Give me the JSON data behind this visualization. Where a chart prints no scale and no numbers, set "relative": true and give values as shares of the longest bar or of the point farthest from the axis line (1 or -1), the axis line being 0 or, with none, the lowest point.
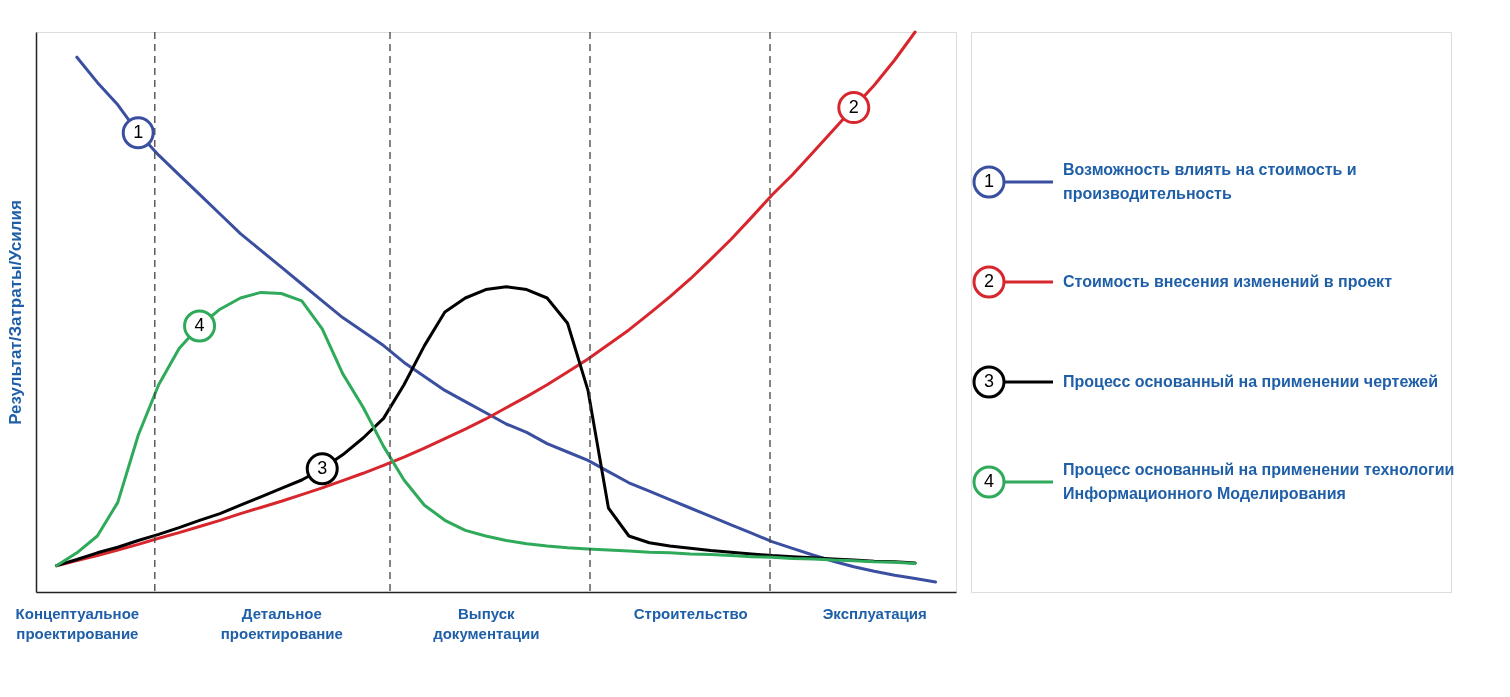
{
  "chart_data": {
    "type": "line",
    "relative": true,
    "ylabel": "Результат/Затраты/Усилия",
    "legend": "right",
    "marker": "none",
    "line_style": "solid",
    "categories": [
      null,
      "Концептуальное\nпроектирование",
      null,
      null,
      null,
      null,
      null,
      null,
      null,
      null,
      null,
      "Детальное\nпроектирование",
      null,
      null,
      null,
      null,
      null,
      null,
      null,
      null,
      null,
      "Выпуск\nдокументации",
      null,
      null,
      null,
      null,
      null,
      null,
      null,
      null,
      null,
      "Строительство",
      null,
      null,
      null,
      null,
      null,
      null,
      null,
      null,
      "Эксплуатация",
      null,
      null,
      null
    ],
    "series": [
      {
        "name": "Возможность влиять на стоимость и производительность",
        "color": "#3b4fa0",
        "values": [
          null,
          0.955,
          0.91,
          0.87,
          0.82,
          0.78,
          0.745,
          0.71,
          0.675,
          0.64,
          0.61,
          0.58,
          0.55,
          0.52,
          0.49,
          0.465,
          0.44,
          0.41,
          0.385,
          0.36,
          0.34,
          0.32,
          0.3,
          0.285,
          0.265,
          0.25,
          0.235,
          0.215,
          0.195,
          0.18,
          0.165,
          0.15,
          0.135,
          0.12,
          0.105,
          0.09,
          0.078,
          0.066,
          0.055,
          0.045,
          0.037,
          0.03,
          0.024,
          0.018
        ]
      },
      {
        "name": "Стоимость внесения изменений в проект",
        "color": "#d7262e",
        "values": [
          0.047,
          0.056,
          0.065,
          0.075,
          0.085,
          0.096,
          0.106,
          0.117,
          0.128,
          0.14,
          0.151,
          0.162,
          0.174,
          0.186,
          0.199,
          0.212,
          0.226,
          0.241,
          0.257,
          0.274,
          0.291,
          0.309,
          0.329,
          0.349,
          0.37,
          0.393,
          0.416,
          0.442,
          0.468,
          0.497,
          0.527,
          0.559,
          0.594,
          0.63,
          0.669,
          0.709,
          0.745,
          0.785,
          0.825,
          0.865,
          0.905,
          0.95,
          1.0,
          null
        ]
      },
      {
        "name": "Процесс основанный на применении чертежей",
        "color": "#000000",
        "values": [
          0.047,
          0.058,
          0.07,
          0.08,
          0.092,
          0.103,
          0.115,
          0.128,
          0.14,
          0.155,
          0.17,
          0.185,
          0.2,
          0.22,
          0.245,
          0.275,
          0.31,
          0.37,
          0.44,
          0.5,
          0.525,
          0.54,
          0.545,
          0.54,
          0.525,
          0.48,
          0.36,
          0.15,
          0.1,
          0.088,
          0.082,
          0.078,
          0.074,
          0.071,
          0.068,
          0.065,
          0.063,
          0.061,
          0.059,
          0.057,
          0.055,
          0.054,
          0.052,
          null
        ]
      },
      {
        "name": "Процесс основанный на применении технологии Информационного Моделирования",
        "color": "#2eaa5a",
        "values": [
          0.047,
          0.07,
          0.1,
          0.16,
          0.28,
          0.37,
          0.435,
          0.475,
          0.505,
          0.525,
          0.535,
          0.533,
          0.52,
          0.47,
          0.39,
          0.33,
          0.26,
          0.2,
          0.155,
          0.128,
          0.11,
          0.1,
          0.092,
          0.086,
          0.082,
          0.079,
          0.077,
          0.075,
          0.073,
          0.071,
          0.07,
          0.068,
          0.067,
          0.065,
          0.063,
          0.062,
          0.06,
          0.059,
          0.057,
          0.056,
          0.054,
          0.053,
          0.051,
          null
        ]
      }
    ],
    "annotations": [
      "1",
      "2",
      "3",
      "4"
    ]
  }
}
